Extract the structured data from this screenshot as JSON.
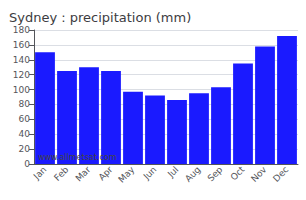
{
  "chart_data": {
    "type": "bar",
    "title": "Sydney : precipitation (mm)",
    "categories": [
      "Jan",
      "Feb",
      "Mar",
      "Apr",
      "May",
      "Jun",
      "Jul",
      "Aug",
      "Sep",
      "Oct",
      "Nov",
      "Dec"
    ],
    "values": [
      150,
      125,
      130,
      125,
      97,
      92,
      86,
      95,
      103,
      135,
      158,
      172
    ],
    "color": "#1a1aff",
    "ylim": [
      0,
      180
    ],
    "yticks": [
      0,
      20,
      40,
      60,
      80,
      100,
      120,
      140,
      160,
      180
    ],
    "grid": true,
    "annotations": [
      "www.allmetsat.com"
    ]
  }
}
